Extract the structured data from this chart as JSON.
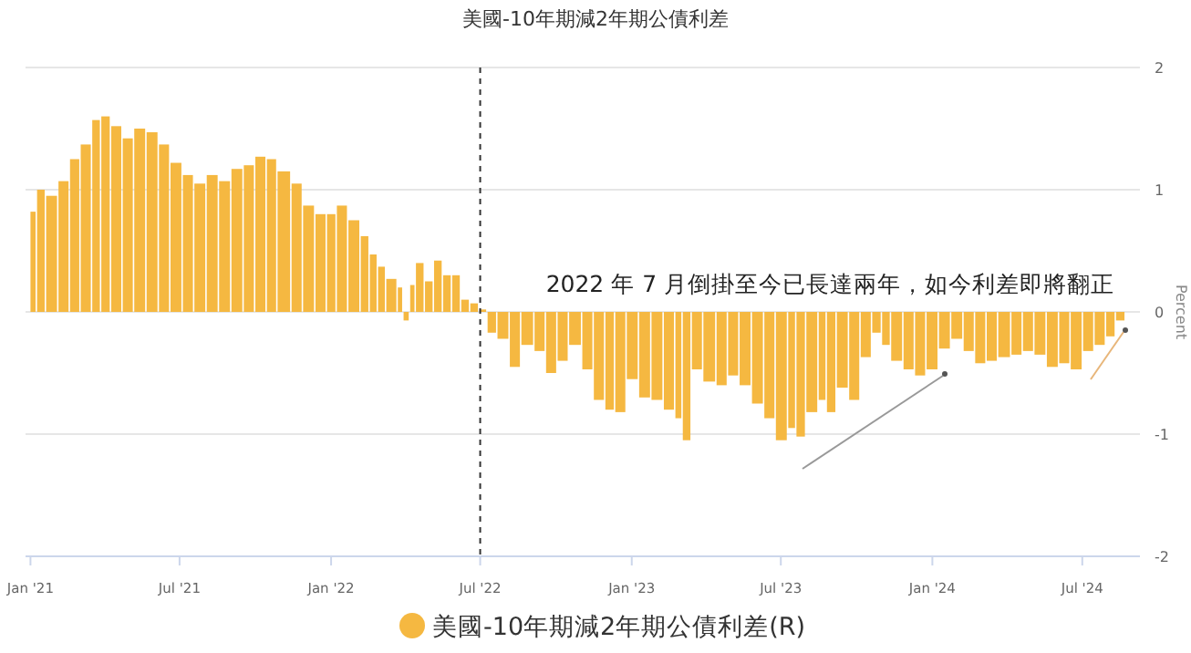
{
  "chart_data": {
    "type": "bar",
    "title": "美國-10年期減2年期公債利差",
    "ylabel": "Percent",
    "x": [
      "2021-01-01",
      "2021-01-09",
      "2021-01-20",
      "2021-02-04",
      "2021-02-18",
      "2021-03-03",
      "2021-03-17",
      "2021-03-28",
      "2021-04-09",
      "2021-04-23",
      "2021-05-07",
      "2021-05-22",
      "2021-06-06",
      "2021-06-20",
      "2021-07-05",
      "2021-07-19",
      "2021-08-03",
      "2021-08-18",
      "2021-09-02",
      "2021-09-17",
      "2021-10-01",
      "2021-10-15",
      "2021-10-28",
      "2021-11-14",
      "2021-11-28",
      "2021-12-13",
      "2021-12-27",
      "2022-01-08",
      "2022-01-22",
      "2022-02-06",
      "2022-02-17",
      "2022-02-27",
      "2022-03-09",
      "2022-03-23",
      "2022-03-30",
      "2022-04-07",
      "2022-04-14",
      "2022-04-25",
      "2022-05-06",
      "2022-05-17",
      "2022-05-28",
      "2022-06-08",
      "2022-06-19",
      "2022-06-30",
      "2022-07-10",
      "2022-07-22",
      "2022-08-06",
      "2022-08-20",
      "2022-09-05",
      "2022-09-19",
      "2022-10-03",
      "2022-10-17",
      "2022-11-02",
      "2022-11-16",
      "2022-11-30",
      "2022-12-12",
      "2022-12-26",
      "2023-01-10",
      "2023-01-25",
      "2023-02-09",
      "2023-02-23",
      "2023-03-04",
      "2023-03-15",
      "2023-03-29",
      "2023-04-14",
      "2023-04-28",
      "2023-05-12",
      "2023-05-27",
      "2023-06-11",
      "2023-06-25",
      "2023-07-10",
      "2023-07-20",
      "2023-08-01",
      "2023-08-16",
      "2023-08-26",
      "2023-09-07",
      "2023-09-22",
      "2023-10-06",
      "2023-10-20",
      "2023-11-01",
      "2023-11-12",
      "2023-11-27",
      "2023-12-11",
      "2023-12-25",
      "2024-01-09",
      "2024-01-24",
      "2024-02-08",
      "2024-02-22",
      "2024-03-07",
      "2024-03-21",
      "2024-04-06",
      "2024-04-20",
      "2024-05-04",
      "2024-05-19",
      "2024-06-03",
      "2024-06-17",
      "2024-07-02",
      "2024-07-16",
      "2024-07-30",
      "2024-08-11"
    ],
    "series": [
      {
        "name": "美國-10年期減2年期公債利差(R)",
        "color": "#f5b841",
        "values": [
          0.82,
          1.0,
          0.95,
          1.07,
          1.25,
          1.37,
          1.57,
          1.6,
          1.52,
          1.42,
          1.5,
          1.47,
          1.37,
          1.22,
          1.12,
          1.05,
          1.12,
          1.07,
          1.17,
          1.2,
          1.27,
          1.25,
          1.15,
          1.05,
          0.87,
          0.8,
          0.8,
          0.87,
          0.75,
          0.62,
          0.47,
          0.37,
          0.27,
          0.2,
          -0.07,
          0.22,
          0.4,
          0.25,
          0.42,
          0.3,
          0.3,
          0.1,
          0.07,
          0.02,
          -0.17,
          -0.22,
          -0.45,
          -0.27,
          -0.32,
          -0.5,
          -0.4,
          -0.27,
          -0.47,
          -0.72,
          -0.8,
          -0.82,
          -0.55,
          -0.7,
          -0.72,
          -0.8,
          -0.87,
          -1.05,
          -0.47,
          -0.57,
          -0.6,
          -0.52,
          -0.6,
          -0.75,
          -0.87,
          -1.05,
          -0.95,
          -1.02,
          -0.82,
          -0.72,
          -0.82,
          -0.62,
          -0.72,
          -0.37,
          -0.17,
          -0.27,
          -0.4,
          -0.47,
          -0.52,
          -0.47,
          -0.3,
          -0.22,
          -0.32,
          -0.42,
          -0.4,
          -0.37,
          -0.35,
          -0.32,
          -0.35,
          -0.45,
          -0.42,
          -0.47,
          -0.32,
          -0.27,
          -0.2,
          -0.07
        ]
      }
    ],
    "xlim": [
      "2020-12-26",
      "2024-09-09"
    ],
    "xticks": [
      {
        "value": "2021-01-01",
        "label": "Jan '21"
      },
      {
        "value": "2021-07-01",
        "label": "Jul '21"
      },
      {
        "value": "2022-01-01",
        "label": "Jan '22"
      },
      {
        "value": "2022-07-01",
        "label": "Jul '22"
      },
      {
        "value": "2023-01-01",
        "label": "Jan '23"
      },
      {
        "value": "2023-07-01",
        "label": "Jul '23"
      },
      {
        "value": "2024-01-01",
        "label": "Jan '24"
      },
      {
        "value": "2024-07-01",
        "label": "Jul '24"
      }
    ],
    "ylim": [
      -2,
      2
    ],
    "yticks": [
      -2,
      -1,
      0,
      1,
      2
    ],
    "grid": "y",
    "legend": "bottom",
    "ref_lines": [
      {
        "axis": "x",
        "value": "2022-07-01",
        "color": "#333333",
        "line_style": "dashed"
      }
    ],
    "annotations": [
      "2022 年 7 月倒掛至今已長達兩年，如今利差即將翻正"
    ]
  }
}
